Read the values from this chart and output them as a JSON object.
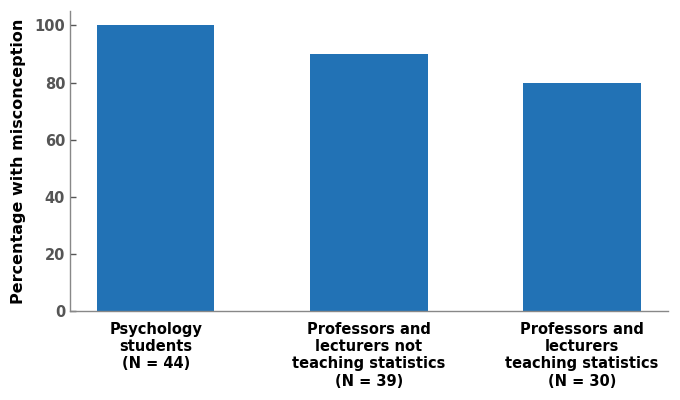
{
  "categories": [
    "Psychology\nstudents\n(N = 44)",
    "Professors and\nlecturers not\nteaching statistics\n(N = 39)",
    "Professors and\nlecturers\nteaching statistics\n(N = 30)"
  ],
  "values": [
    100,
    90,
    80
  ],
  "bar_color": "#2272b5",
  "ylabel": "Percentage with misconception",
  "ylim": [
    0,
    105
  ],
  "yticks": [
    0,
    20,
    40,
    60,
    80,
    100
  ],
  "bar_width": 0.55,
  "background_color": "#ffffff",
  "tick_label_fontsize": 10.5,
  "ylabel_fontsize": 11.5,
  "spine_color": "#888888"
}
